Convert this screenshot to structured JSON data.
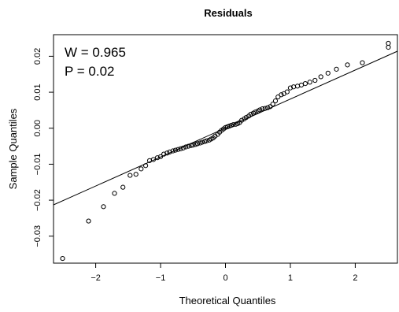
{
  "chart_data": {
    "type": "scatter",
    "title": "Residuals",
    "xlabel": "Theoretical Quantiles",
    "ylabel": "Sample Quantiles",
    "xlim": [
      -2.65,
      2.65
    ],
    "ylim": [
      -0.0375,
      0.026
    ],
    "x_ticks": [
      -2,
      -1,
      0,
      1,
      2
    ],
    "x_tick_labels": [
      "−2",
      "−1",
      "0",
      "1",
      "2"
    ],
    "y_ticks": [
      -0.03,
      -0.02,
      -0.01,
      0.0,
      0.01,
      0.02
    ],
    "y_tick_labels": [
      "−0.03",
      "−0.02",
      "−0.01",
      "0.00",
      "0.01",
      "0.02"
    ],
    "grid": false,
    "annotations": [
      "W = 0.965",
      "P = 0.02"
    ],
    "reference_line": {
      "x": [
        -2.65,
        2.65
      ],
      "y": [
        -0.0213,
        0.0214
      ]
    },
    "series": [
      {
        "x": [
          -2.51,
          -2.11,
          -1.88,
          -1.71,
          -1.58,
          -1.47,
          -1.38,
          -1.3,
          -1.23,
          -1.17,
          -1.11,
          -1.05,
          -1.0,
          -0.95,
          -0.9,
          -0.86,
          -0.81,
          -0.77,
          -0.73,
          -0.69,
          -0.65,
          -0.61,
          -0.57,
          -0.53,
          -0.5,
          -0.46,
          -0.43,
          -0.39,
          -0.36,
          -0.32,
          -0.29,
          -0.25,
          -0.22,
          -0.19,
          -0.16,
          -0.12,
          -0.09,
          -0.06,
          -0.03,
          0.0,
          0.03,
          0.06,
          0.09,
          0.12,
          0.16,
          0.19,
          0.22,
          0.25,
          0.29,
          0.32,
          0.36,
          0.39,
          0.43,
          0.46,
          0.5,
          0.53,
          0.57,
          0.61,
          0.65,
          0.69,
          0.73,
          0.77,
          0.81,
          0.86,
          0.9,
          0.95,
          1.0,
          1.05,
          1.11,
          1.17,
          1.23,
          1.3,
          1.38,
          1.47,
          1.58,
          1.71,
          1.88,
          2.11,
          2.51
        ],
        "y": [
          -0.0362,
          -0.0258,
          -0.0218,
          -0.0181,
          -0.0164,
          -0.0131,
          -0.0128,
          -0.0113,
          -0.0104,
          -0.009,
          -0.0087,
          -0.0082,
          -0.0079,
          -0.0072,
          -0.0069,
          -0.0066,
          -0.0063,
          -0.0061,
          -0.0059,
          -0.0057,
          -0.0055,
          -0.0052,
          -0.005,
          -0.0048,
          -0.0047,
          -0.0045,
          -0.0043,
          -0.0041,
          -0.0039,
          -0.0037,
          -0.0035,
          -0.0033,
          -0.003,
          -0.0027,
          -0.0022,
          -0.0017,
          -0.0011,
          -0.0006,
          -0.0002,
          0.0002,
          0.0004,
          0.0006,
          0.0008,
          0.001,
          0.0011,
          0.0013,
          0.0016,
          0.0022,
          0.0026,
          0.003,
          0.0034,
          0.0039,
          0.0042,
          0.0045,
          0.0048,
          0.0051,
          0.0054,
          0.0055,
          0.0057,
          0.006,
          0.0067,
          0.0076,
          0.0087,
          0.0093,
          0.0096,
          0.0101,
          0.0112,
          0.0115,
          0.0117,
          0.012,
          0.0124,
          0.0128,
          0.0133,
          0.0143,
          0.0153,
          0.0164,
          0.0176,
          0.0182,
          0.0225
        ]
      }
    ],
    "extra_points": [
      {
        "x": 2.51,
        "y": 0.0236
      }
    ]
  }
}
